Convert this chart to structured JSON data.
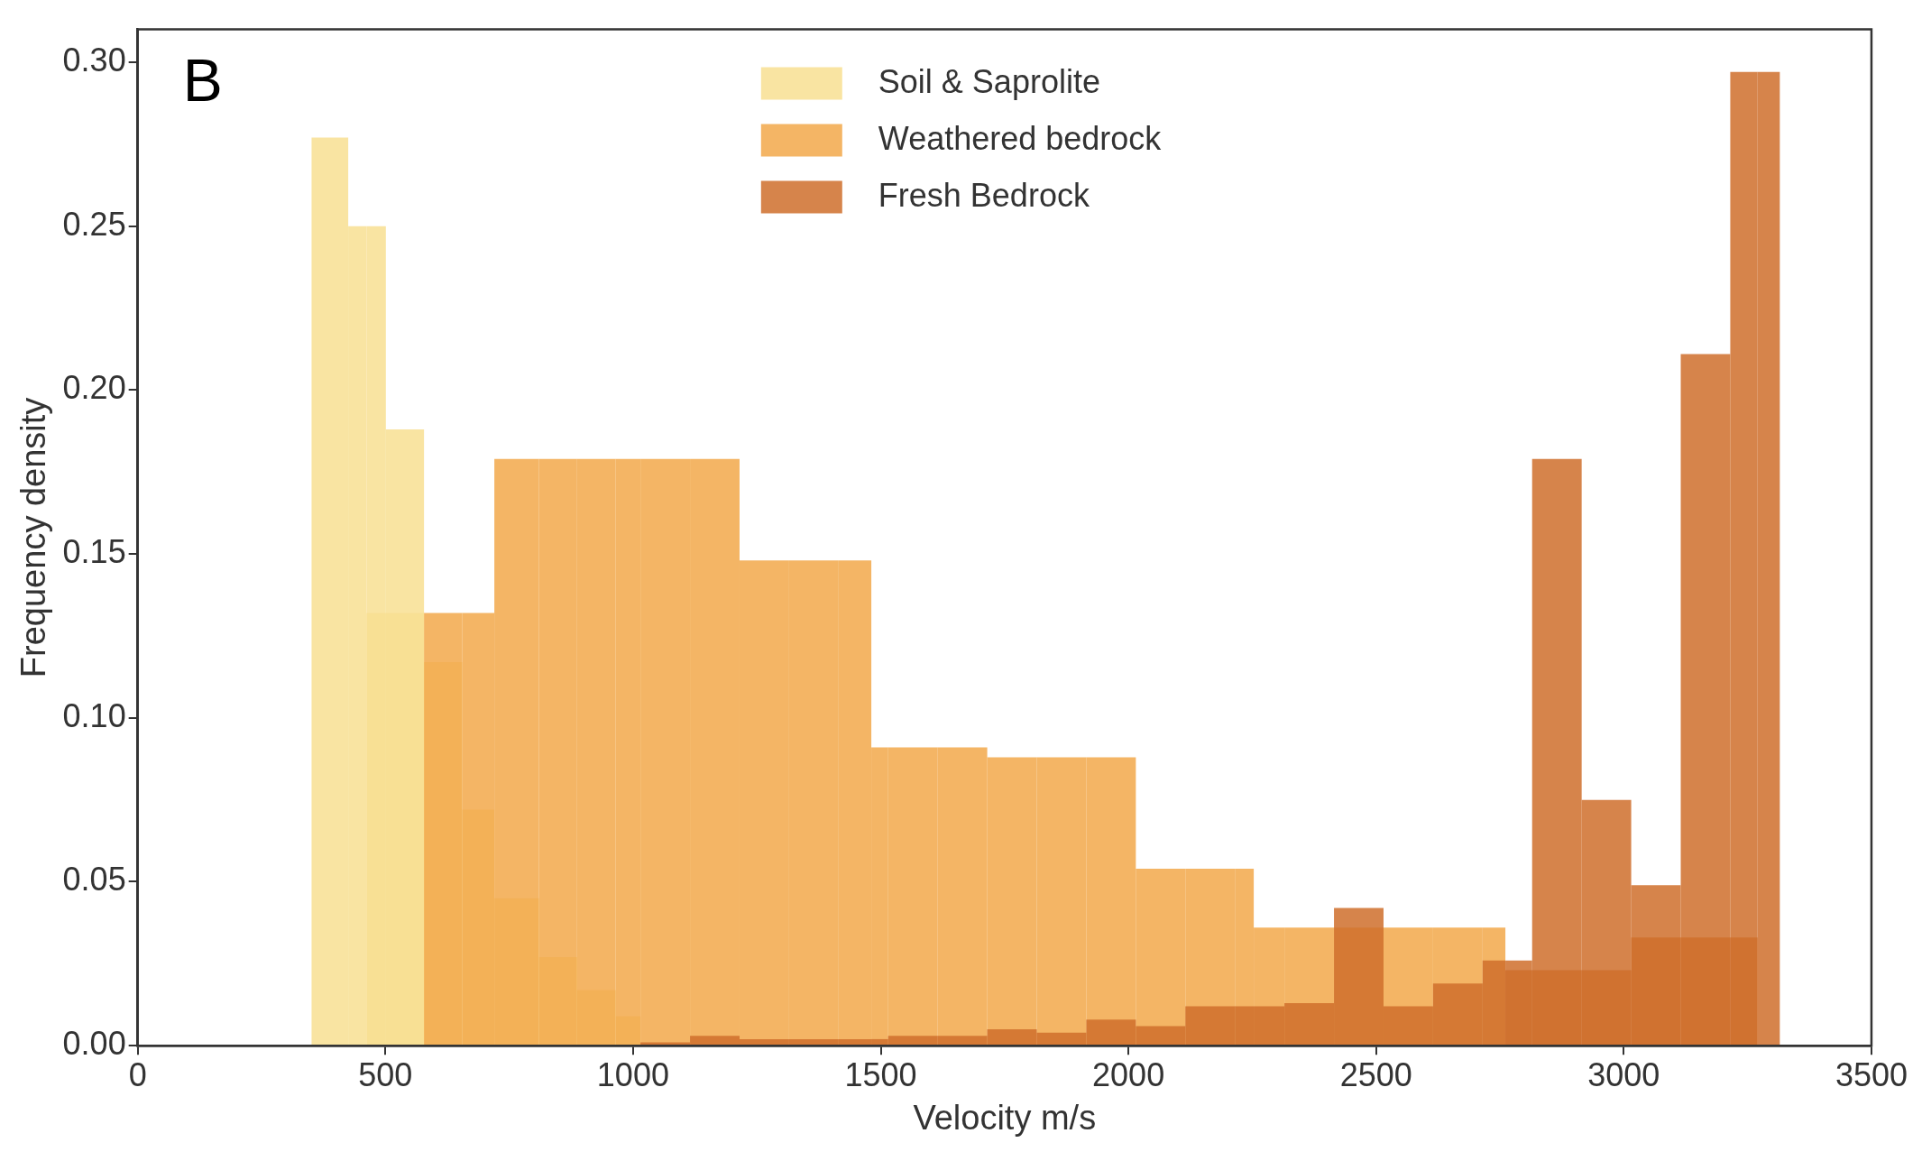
{
  "chart_data": {
    "type": "histogram",
    "xlabel": "Velocity m/s",
    "ylabel": "Frequency density",
    "annotations": [
      "B"
    ],
    "xlim": [
      0,
      3500
    ],
    "xticks": [
      0,
      500,
      1000,
      1500,
      2000,
      2500,
      3000,
      3500
    ],
    "ylim": [
      0,
      0.31
    ],
    "yticks": [
      {
        "value": 0,
        "label": "0.00"
      },
      {
        "value": 0.05,
        "label": "0.05"
      },
      {
        "value": 0.1,
        "label": "0.10"
      },
      {
        "value": 0.15,
        "label": "0.15"
      },
      {
        "value": 0.2,
        "label": "0.20"
      },
      {
        "value": 0.25,
        "label": "0.25"
      },
      {
        "value": 0.3,
        "label": "0.30"
      }
    ],
    "grid": false,
    "legend": "top",
    "bins": [
      351,
      425,
      462,
      501,
      578,
      655,
      720,
      810,
      887,
      965,
      1015,
      1115,
      1215,
      1315,
      1415,
      1481,
      1515,
      1615,
      1715,
      1815,
      1915,
      2015,
      2115,
      2215,
      2253,
      2315,
      2415,
      2515,
      2615,
      2715,
      2761,
      2815,
      2915,
      3015,
      3115,
      3215,
      3270,
      3315
    ],
    "series": [
      {
        "name": "Soil & Saprolite",
        "color": "#f8df92",
        "values": [
          0.277,
          0.25,
          0.25,
          0.188,
          null,
          null,
          null,
          null,
          null,
          null,
          null,
          null,
          null,
          null,
          null,
          null,
          null,
          null,
          null,
          null,
          null,
          null,
          null,
          null,
          null,
          null,
          null,
          null,
          null,
          null,
          null,
          null,
          null,
          null,
          null,
          null,
          null
        ]
      },
      {
        "color": "#f8df92",
        "values": [
          null,
          null,
          0.132,
          0.132,
          0.117,
          0.072,
          0.045,
          0.027,
          0.017,
          0.009,
          null,
          null,
          null,
          null,
          null,
          null,
          null,
          null,
          null,
          null,
          null,
          null,
          null,
          null,
          null,
          null,
          null,
          null,
          null,
          null,
          null,
          null,
          null,
          null,
          null,
          null,
          null
        ]
      },
      {
        "name": "Weathered bedrock",
        "color": "#f2a84a",
        "values": [
          null,
          null,
          null,
          null,
          0.132,
          0.132,
          0.179,
          0.179,
          0.179,
          0.179,
          0.179,
          0.179,
          0.148,
          0.148,
          0.148,
          0.091,
          0.091,
          0.091,
          0.088,
          0.088,
          0.088,
          0.054,
          0.054,
          0.054,
          0.036,
          0.036,
          0.036,
          0.036,
          0.036,
          0.036,
          null,
          null,
          null,
          null,
          null,
          null,
          null
        ]
      },
      {
        "name": "Fresh Bedrock",
        "color": "#cf6e2c",
        "values": [
          null,
          null,
          null,
          null,
          null,
          null,
          null,
          null,
          null,
          null,
          0.001,
          0.003,
          0.002,
          0.002,
          0.002,
          0.002,
          0.003,
          0.003,
          0.005,
          0.004,
          0.008,
          0.006,
          0.012,
          0.012,
          0.012,
          0.013,
          0.042,
          0.012,
          0.019,
          0.026,
          0.026,
          0.179,
          0.075,
          0.049,
          0.211,
          0.297,
          0.297
        ]
      },
      {
        "color": "#cf6e2c",
        "values": [
          null,
          null,
          null,
          null,
          null,
          null,
          null,
          null,
          null,
          null,
          null,
          null,
          null,
          null,
          null,
          null,
          null,
          null,
          null,
          null,
          null,
          null,
          null,
          null,
          null,
          null,
          null,
          null,
          null,
          null,
          0.023,
          0.023,
          0.023,
          0.033,
          0.033,
          0.033,
          null
        ]
      }
    ]
  }
}
